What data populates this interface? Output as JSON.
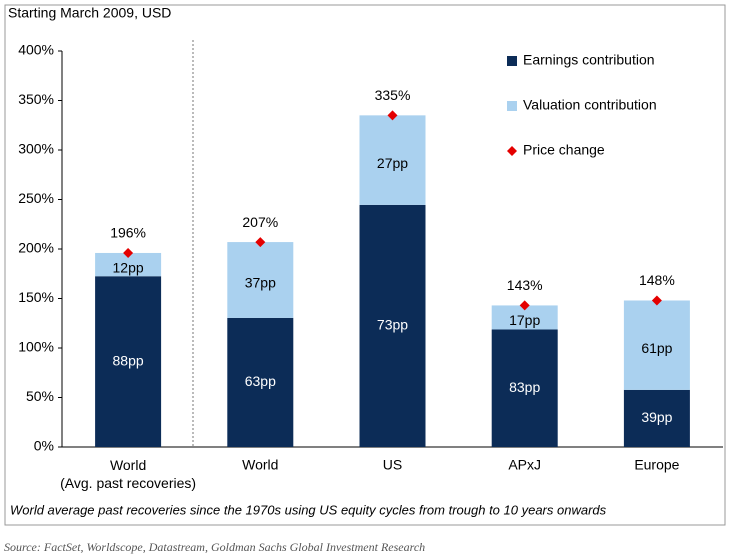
{
  "chart_data": {
    "type": "bar",
    "stacked": true,
    "subtitle": "Starting March 2009, USD",
    "categories": [
      "World\n(Avg. past recoveries)",
      "World",
      "US",
      "APxJ",
      "Europe"
    ],
    "series": [
      {
        "name": "Earnings contribution",
        "color": "#0c2c57",
        "values": [
          88,
          63,
          73,
          83,
          39
        ],
        "value_labels": [
          "88pp",
          "63pp",
          "73pp",
          "83pp",
          "39pp"
        ]
      },
      {
        "name": "Valuation contribution",
        "color": "#aad1ef",
        "values": [
          12,
          37,
          27,
          17,
          61
        ],
        "value_labels": [
          "12pp",
          "37pp",
          "27pp",
          "17pp",
          "61pp"
        ]
      }
    ],
    "price_change": {
      "name": "Price change",
      "color": "#e40000",
      "values": [
        196,
        207,
        335,
        143,
        148
      ],
      "value_labels": [
        "196%",
        "207%",
        "335%",
        "143%",
        "148%"
      ]
    },
    "ylim": [
      0,
      400
    ],
    "yticks": [
      {
        "value": 0,
        "label": "0%"
      },
      {
        "value": 50,
        "label": "50%"
      },
      {
        "value": 100,
        "label": "100%"
      },
      {
        "value": 150,
        "label": "150%"
      },
      {
        "value": 200,
        "label": "200%"
      },
      {
        "value": 250,
        "label": "250%"
      },
      {
        "value": 300,
        "label": "300%"
      },
      {
        "value": 350,
        "label": "350%"
      },
      {
        "value": 400,
        "label": "400%"
      }
    ],
    "footnote": "World average past recoveries since the 1970s using US equity cycles from trough to 10 years onwards",
    "source": "Source: FactSet, Worldscope, Datastream, Goldman Sachs Global Investment Research"
  }
}
